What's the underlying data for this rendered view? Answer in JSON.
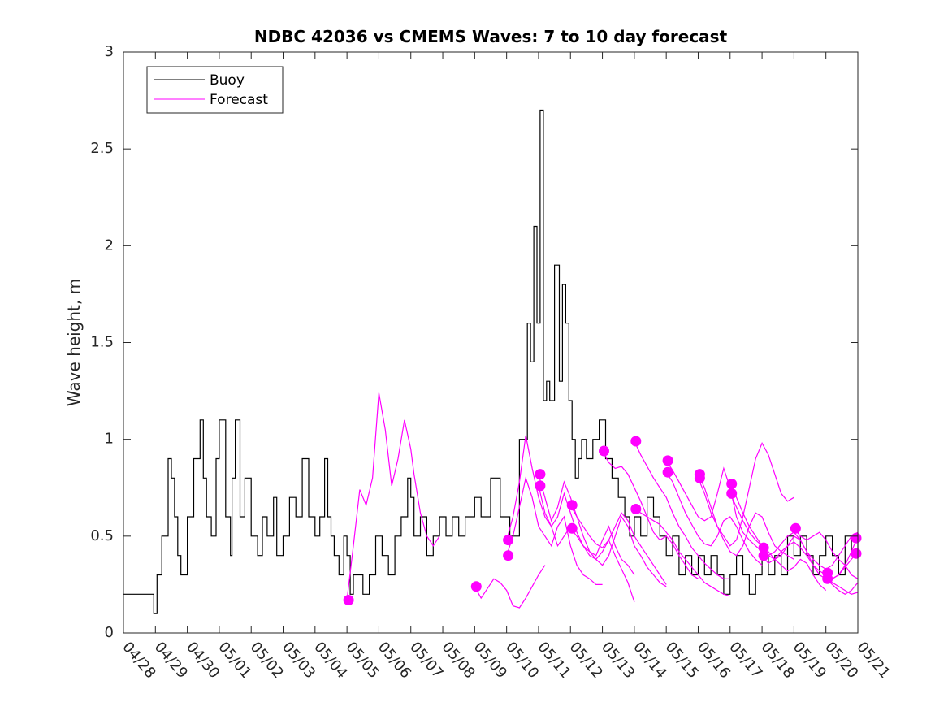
{
  "chart_data": {
    "type": "line",
    "title": "NDBC 42036 vs CMEMS Waves: 7 to 10 day forecast",
    "xlabel": "",
    "ylabel": "Wave height, m",
    "xlim": [
      "04/28",
      "05/21"
    ],
    "ylim": [
      0,
      3
    ],
    "x_tick_labels": [
      "04/28",
      "04/29",
      "04/30",
      "05/01",
      "05/02",
      "05/03",
      "05/04",
      "05/05",
      "05/06",
      "05/07",
      "05/08",
      "05/09",
      "05/10",
      "05/11",
      "05/12",
      "05/13",
      "05/14",
      "05/15",
      "05/16",
      "05/17",
      "05/18",
      "05/19",
      "05/20",
      "05/21"
    ],
    "y_tick_labels": [
      "0",
      "0.5",
      "1",
      "1.5",
      "2",
      "2.5",
      "3"
    ],
    "y_ticks": [
      0,
      0.5,
      1,
      1.5,
      2,
      2.5,
      3
    ],
    "grid": false,
    "legend": {
      "position": "top-left",
      "entries": [
        "Buoy",
        "Forecast"
      ]
    },
    "colors": {
      "buoy": "#000000",
      "forecast": "#ff00ff"
    },
    "series": [
      {
        "name": "Buoy",
        "style": "step",
        "x": [
          0,
          0.9,
          0.95,
          1.05,
          1.2,
          1.4,
          1.5,
          1.6,
          1.7,
          1.8,
          2.0,
          2.2,
          2.4,
          2.5,
          2.6,
          2.75,
          2.9,
          3.0,
          3.2,
          3.35,
          3.4,
          3.5,
          3.65,
          3.8,
          4.0,
          4.2,
          4.35,
          4.5,
          4.7,
          4.8,
          5.0,
          5.2,
          5.4,
          5.6,
          5.8,
          6.0,
          6.15,
          6.3,
          6.4,
          6.5,
          6.6,
          6.75,
          6.9,
          7.0,
          7.1,
          7.2,
          7.5,
          7.7,
          7.9,
          8.1,
          8.3,
          8.5,
          8.7,
          8.9,
          9.0,
          9.1,
          9.3,
          9.5,
          9.7,
          9.9,
          10.1,
          10.3,
          10.5,
          10.7,
          11.0,
          11.2,
          11.5,
          11.8,
          12.1,
          12.4,
          12.65,
          12.75,
          12.85,
          12.95,
          13.05,
          13.15,
          13.25,
          13.35,
          13.5,
          13.65,
          13.75,
          13.85,
          13.95,
          14.05,
          14.15,
          14.25,
          14.35,
          14.5,
          14.7,
          14.9,
          15.1,
          15.3,
          15.5,
          15.7,
          15.85,
          16.0,
          16.2,
          16.4,
          16.6,
          16.8,
          17.0,
          17.2,
          17.4,
          17.6,
          17.8,
          18.0,
          18.2,
          18.4,
          18.6,
          18.8,
          19.0,
          19.2,
          19.4,
          19.6,
          19.8,
          20.0,
          20.2,
          20.4,
          20.6,
          20.8,
          21.0,
          21.2,
          21.4,
          21.6,
          21.8,
          22.0,
          22.2,
          22.4,
          22.6,
          22.8,
          23.0
        ],
        "y": [
          0.2,
          0.2,
          0.1,
          0.3,
          0.5,
          0.9,
          0.8,
          0.6,
          0.4,
          0.3,
          0.6,
          0.9,
          1.1,
          0.8,
          0.6,
          0.5,
          0.9,
          1.1,
          0.6,
          0.4,
          0.8,
          1.1,
          0.6,
          0.8,
          0.5,
          0.4,
          0.6,
          0.5,
          0.7,
          0.4,
          0.5,
          0.7,
          0.6,
          0.9,
          0.6,
          0.5,
          0.6,
          0.9,
          0.6,
          0.5,
          0.4,
          0.3,
          0.5,
          0.4,
          0.2,
          0.3,
          0.2,
          0.3,
          0.5,
          0.4,
          0.3,
          0.5,
          0.6,
          0.8,
          0.7,
          0.5,
          0.6,
          0.4,
          0.5,
          0.6,
          0.5,
          0.6,
          0.5,
          0.6,
          0.7,
          0.6,
          0.8,
          0.6,
          0.5,
          1.0,
          1.6,
          1.4,
          2.1,
          1.6,
          2.7,
          1.2,
          1.3,
          1.2,
          1.9,
          1.3,
          1.8,
          1.6,
          1.2,
          1.0,
          0.8,
          0.9,
          1.0,
          0.9,
          1.0,
          1.1,
          0.9,
          0.8,
          0.7,
          0.6,
          0.5,
          0.6,
          0.5,
          0.7,
          0.6,
          0.5,
          0.4,
          0.5,
          0.3,
          0.4,
          0.3,
          0.4,
          0.3,
          0.4,
          0.3,
          0.2,
          0.3,
          0.4,
          0.3,
          0.2,
          0.3,
          0.4,
          0.3,
          0.4,
          0.3,
          0.5,
          0.4,
          0.5,
          0.4,
          0.3,
          0.4,
          0.5,
          0.4,
          0.3,
          0.5,
          0.4,
          0.5
        ]
      }
    ],
    "forecast_lines": [
      {
        "x": [
          7.0,
          7.2,
          7.4,
          7.6,
          7.8,
          8.0,
          8.2,
          8.4,
          8.6,
          8.8,
          9.0,
          9.1,
          9.3,
          9.5,
          9.7,
          9.9
        ],
        "y": [
          0.17,
          0.45,
          0.74,
          0.66,
          0.8,
          1.24,
          1.05,
          0.76,
          0.9,
          1.1,
          0.95,
          0.82,
          0.62,
          0.5,
          0.45,
          0.5
        ]
      },
      {
        "x": [
          11.0,
          11.2,
          11.4,
          11.6,
          11.8,
          12.0,
          12.2,
          12.4,
          12.6,
          12.8,
          13.0,
          13.2
        ],
        "y": [
          0.24,
          0.18,
          0.23,
          0.28,
          0.26,
          0.22,
          0.14,
          0.13,
          0.18,
          0.24,
          0.3,
          0.35
        ]
      },
      {
        "x": [
          12.0,
          12.2,
          12.4,
          12.6,
          12.8,
          13.0,
          13.2,
          13.4,
          13.6,
          13.8,
          14.0
        ],
        "y": [
          0.48,
          0.6,
          0.78,
          1.02,
          0.85,
          0.7,
          0.6,
          0.55,
          0.45,
          0.5,
          0.55
        ]
      },
      {
        "x": [
          12.0,
          12.2,
          12.4,
          12.6,
          12.8,
          13.0,
          13.2,
          13.4,
          13.6,
          13.8,
          14.0,
          14.2,
          14.4,
          14.6,
          14.8,
          15.0
        ],
        "y": [
          0.4,
          0.5,
          0.65,
          0.8,
          0.7,
          0.55,
          0.5,
          0.45,
          0.55,
          0.6,
          0.45,
          0.35,
          0.3,
          0.28,
          0.25,
          0.25
        ]
      },
      {
        "x": [
          13.0,
          13.2,
          13.4,
          13.6,
          13.8,
          14.0,
          14.2,
          14.4,
          14.6,
          14.8,
          15.0,
          15.2,
          15.4,
          15.6,
          15.8,
          16.0
        ],
        "y": [
          0.82,
          0.7,
          0.58,
          0.65,
          0.78,
          0.7,
          0.6,
          0.5,
          0.42,
          0.4,
          0.48,
          0.55,
          0.45,
          0.38,
          0.35,
          0.3
        ]
      },
      {
        "x": [
          13.0,
          13.2,
          13.4,
          13.6,
          13.8,
          14.0,
          14.2,
          14.4,
          14.6,
          14.8,
          15.0,
          15.2,
          15.4,
          15.6,
          15.8,
          16.0
        ],
        "y": [
          0.76,
          0.62,
          0.55,
          0.6,
          0.72,
          0.62,
          0.52,
          0.45,
          0.4,
          0.38,
          0.42,
          0.48,
          0.4,
          0.33,
          0.26,
          0.16
        ]
      },
      {
        "x": [
          14.0,
          14.2,
          14.4,
          14.6,
          14.8,
          15.0,
          15.2,
          15.4,
          15.6,
          15.8,
          16.0,
          16.2,
          16.4,
          16.6,
          16.8,
          17.0
        ],
        "y": [
          0.66,
          0.6,
          0.55,
          0.5,
          0.46,
          0.44,
          0.48,
          0.55,
          0.62,
          0.58,
          0.5,
          0.45,
          0.4,
          0.35,
          0.3,
          0.25
        ]
      },
      {
        "x": [
          14.0,
          14.2,
          14.4,
          14.6,
          14.8,
          15.0,
          15.2,
          15.4,
          15.6,
          15.8,
          16.0,
          16.2,
          16.4,
          16.6,
          16.8,
          17.0
        ],
        "y": [
          0.54,
          0.5,
          0.45,
          0.42,
          0.38,
          0.35,
          0.4,
          0.5,
          0.6,
          0.55,
          0.45,
          0.4,
          0.34,
          0.3,
          0.26,
          0.24
        ]
      },
      {
        "x": [
          15.0,
          15.2,
          15.4,
          15.6,
          15.8,
          16.0,
          16.2,
          16.4,
          16.6,
          16.8,
          17.0,
          17.2,
          17.4,
          17.6,
          17.8,
          18.0
        ],
        "y": [
          0.94,
          0.88,
          0.85,
          0.86,
          0.82,
          0.75,
          0.68,
          0.6,
          0.52,
          0.48,
          0.5,
          0.46,
          0.4,
          0.35,
          0.3,
          0.28
        ]
      },
      {
        "x": [
          16.0,
          16.2,
          16.4,
          16.6,
          16.8,
          17.0,
          17.2,
          17.4,
          17.6,
          17.8,
          18.0,
          18.2,
          18.4,
          18.6,
          18.8,
          19.0
        ],
        "y": [
          0.99,
          0.92,
          0.86,
          0.8,
          0.75,
          0.7,
          0.62,
          0.55,
          0.5,
          0.44,
          0.4,
          0.36,
          0.33,
          0.3,
          0.28,
          0.28
        ]
      },
      {
        "x": [
          16.0,
          16.2,
          16.4,
          16.6,
          16.8,
          17.0,
          17.2,
          17.4,
          17.6,
          17.8,
          18.0,
          18.2,
          18.4,
          18.6,
          18.8,
          19.0
        ],
        "y": [
          0.64,
          0.62,
          0.6,
          0.58,
          0.56,
          0.52,
          0.48,
          0.42,
          0.38,
          0.34,
          0.3,
          0.26,
          0.24,
          0.22,
          0.2,
          0.19
        ]
      },
      {
        "x": [
          17.0,
          17.2,
          17.4,
          17.6,
          17.8,
          18.0,
          18.2,
          18.4,
          18.6,
          18.8,
          19.0,
          19.2,
          19.4,
          19.6,
          19.8,
          20.0
        ],
        "y": [
          0.89,
          0.84,
          0.78,
          0.72,
          0.66,
          0.6,
          0.58,
          0.6,
          0.72,
          0.85,
          0.75,
          0.6,
          0.52,
          0.48,
          0.45,
          0.42
        ]
      },
      {
        "x": [
          17.0,
          17.2,
          17.4,
          17.6,
          17.8,
          18.0,
          18.2,
          18.4,
          18.6,
          18.8,
          19.0,
          19.2,
          19.4,
          19.6,
          19.8,
          20.0
        ],
        "y": [
          0.83,
          0.78,
          0.7,
          0.62,
          0.56,
          0.5,
          0.46,
          0.45,
          0.5,
          0.58,
          0.6,
          0.55,
          0.48,
          0.42,
          0.38,
          0.35
        ]
      },
      {
        "x": [
          18.0,
          18.2,
          18.4,
          18.6,
          18.8,
          19.0,
          19.2,
          19.4,
          19.6,
          19.8,
          20.0,
          20.2,
          20.4,
          20.6,
          20.8,
          21.0
        ],
        "y": [
          0.82,
          0.75,
          0.65,
          0.55,
          0.5,
          0.45,
          0.48,
          0.6,
          0.75,
          0.9,
          0.98,
          0.92,
          0.82,
          0.72,
          0.68,
          0.7
        ]
      },
      {
        "x": [
          18.0,
          18.2,
          18.4,
          18.6,
          18.8,
          19.0,
          19.2,
          19.4,
          19.6,
          19.8,
          20.0,
          20.2,
          20.4,
          20.6,
          20.8,
          21.0
        ],
        "y": [
          0.8,
          0.72,
          0.62,
          0.55,
          0.48,
          0.42,
          0.4,
          0.45,
          0.55,
          0.62,
          0.6,
          0.52,
          0.45,
          0.42,
          0.4,
          0.38
        ]
      },
      {
        "x": [
          19.0,
          19.2,
          19.4,
          19.6,
          19.8,
          20.0,
          20.2,
          20.4,
          20.6,
          20.8,
          21.0,
          21.2,
          21.4,
          21.6,
          21.8,
          22.0
        ],
        "y": [
          0.77,
          0.7,
          0.62,
          0.55,
          0.5,
          0.45,
          0.4,
          0.38,
          0.4,
          0.45,
          0.5,
          0.48,
          0.42,
          0.35,
          0.3,
          0.28
        ]
      },
      {
        "x": [
          19.0,
          19.2,
          19.4,
          19.6,
          19.8,
          20.0,
          20.2,
          20.4,
          20.6,
          20.8,
          21.0,
          21.2,
          21.4,
          21.6,
          21.8,
          22.0
        ],
        "y": [
          0.72,
          0.65,
          0.58,
          0.52,
          0.48,
          0.45,
          0.42,
          0.38,
          0.35,
          0.32,
          0.34,
          0.38,
          0.36,
          0.3,
          0.25,
          0.22
        ]
      },
      {
        "x": [
          20.0,
          20.2,
          20.4,
          20.6,
          20.8,
          21.0,
          21.2,
          21.4,
          21.6,
          21.8,
          22.0,
          22.2,
          22.4,
          22.6,
          22.8,
          23.0
        ],
        "y": [
          0.44,
          0.4,
          0.42,
          0.46,
          0.5,
          0.52,
          0.48,
          0.42,
          0.38,
          0.35,
          0.33,
          0.35,
          0.4,
          0.45,
          0.5,
          0.52
        ]
      },
      {
        "x": [
          20.0,
          20.2,
          20.4,
          20.6,
          20.8,
          21.0,
          21.2,
          21.4,
          21.6,
          21.8,
          22.0,
          22.2,
          22.4,
          22.6,
          22.8,
          23.0
        ],
        "y": [
          0.4,
          0.36,
          0.38,
          0.42,
          0.45,
          0.47,
          0.44,
          0.4,
          0.35,
          0.32,
          0.3,
          0.28,
          0.3,
          0.34,
          0.38,
          0.42
        ]
      },
      {
        "x": [
          21.0,
          21.2,
          21.4,
          21.6,
          21.8,
          22.0,
          22.2,
          22.4,
          22.6,
          22.8,
          23.0
        ],
        "y": [
          0.54,
          0.5,
          0.48,
          0.5,
          0.52,
          0.48,
          0.42,
          0.38,
          0.35,
          0.3,
          0.28
        ]
      },
      {
        "x": [
          22.0,
          22.2,
          22.4,
          22.6,
          22.8,
          23.0
        ],
        "y": [
          0.31,
          0.28,
          0.3,
          0.35,
          0.42,
          0.5
        ]
      },
      {
        "x": [
          22.0,
          22.2,
          22.4,
          22.6,
          22.8,
          23.0
        ],
        "y": [
          0.28,
          0.25,
          0.22,
          0.2,
          0.22,
          0.26
        ]
      },
      {
        "x": [
          22.0,
          22.2,
          22.4,
          22.6,
          22.8,
          23.0
        ],
        "y": [
          0.3,
          0.26,
          0.24,
          0.22,
          0.2,
          0.21
        ]
      },
      {
        "x": [
          23.0,
          23.2
        ],
        "y": [
          0.49,
          0.5
        ]
      },
      {
        "x": [
          23.0,
          23.2
        ],
        "y": [
          0.41,
          0.42
        ]
      }
    ],
    "forecast_start_markers": [
      {
        "x": 7.05,
        "y": 0.17
      },
      {
        "x": 11.05,
        "y": 0.24
      },
      {
        "x": 12.05,
        "y": 0.48
      },
      {
        "x": 12.05,
        "y": 0.4
      },
      {
        "x": 13.05,
        "y": 0.82
      },
      {
        "x": 13.05,
        "y": 0.76
      },
      {
        "x": 14.05,
        "y": 0.66
      },
      {
        "x": 14.05,
        "y": 0.54
      },
      {
        "x": 15.05,
        "y": 0.94
      },
      {
        "x": 16.05,
        "y": 0.99
      },
      {
        "x": 16.05,
        "y": 0.64
      },
      {
        "x": 17.05,
        "y": 0.89
      },
      {
        "x": 17.05,
        "y": 0.83
      },
      {
        "x": 18.05,
        "y": 0.82
      },
      {
        "x": 18.05,
        "y": 0.8
      },
      {
        "x": 19.05,
        "y": 0.77
      },
      {
        "x": 19.05,
        "y": 0.72
      },
      {
        "x": 20.05,
        "y": 0.44
      },
      {
        "x": 20.05,
        "y": 0.4
      },
      {
        "x": 21.05,
        "y": 0.54
      },
      {
        "x": 22.05,
        "y": 0.31
      },
      {
        "x": 22.05,
        "y": 0.28
      },
      {
        "x": 23.05,
        "y": 0.49
      },
      {
        "x": 23.05,
        "y": 0.41
      }
    ]
  }
}
